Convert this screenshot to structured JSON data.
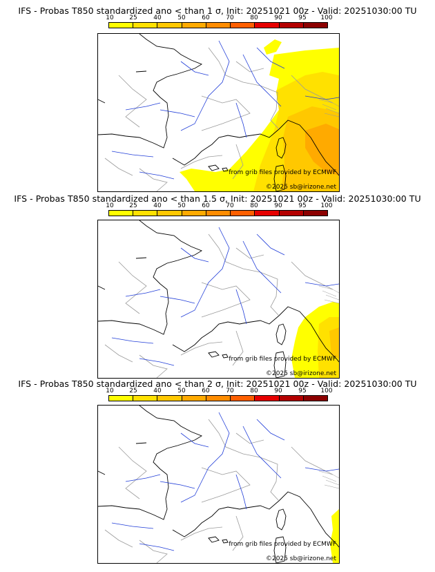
{
  "panels": [
    {
      "title": "IFS - Probas T850  standardized ano < than 1 σ, Init: 20251021 00z - Valid: 20251030:00 TU",
      "threshold": "1 σ",
      "credit_source": "from grib files provided by ECMWF",
      "credit_copyright": "©2025 sb@irizone.net"
    },
    {
      "title": "IFS - Probas T850  standardized ano < than 1.5 σ, Init: 20251021 00z - Valid: 20251030:00 TU",
      "threshold": "1.5 σ",
      "credit_source": "from grib files provided by ECMWF",
      "credit_copyright": "©2025 sb@irizone.net"
    },
    {
      "title": "IFS - Probas T850  standardized ano < than 2 σ, Init: 20251021 00z - Valid: 20251030:00 TU",
      "threshold": "2 σ",
      "credit_source": "from grib files provided by ECMWF",
      "credit_copyright": "©2025 sb@irizone.net"
    }
  ],
  "legend": {
    "ticks": [
      "10",
      "25",
      "40",
      "50",
      "60",
      "70",
      "80",
      "90",
      "95",
      "100"
    ],
    "colors": [
      "#ffff00",
      "#ffe100",
      "#ffc800",
      "#ffaa00",
      "#ff8c00",
      "#ff5f00",
      "#e60000",
      "#b40000",
      "#8c0000",
      "#5a0000"
    ]
  },
  "colors": {
    "coast": "#000000",
    "river": "#1f3cd8",
    "border": "#9a9a9a"
  }
}
